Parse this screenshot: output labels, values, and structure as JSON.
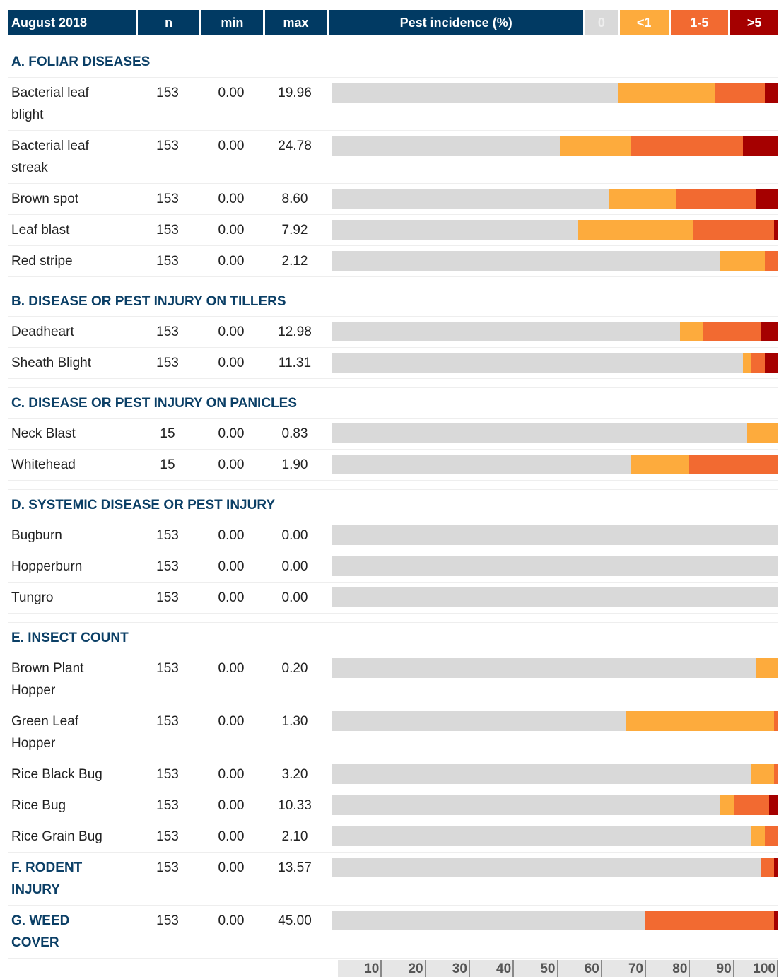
{
  "header": {
    "title": "August 2018",
    "n": "n",
    "min": "min",
    "max": "max",
    "incidence": "Pest incidence (%)",
    "legend": [
      {
        "label": "0",
        "color": "#d9d9d9"
      },
      {
        "label": "<1",
        "color": "#fdab3d"
      },
      {
        "label": "1-5",
        "color": "#f26a31"
      },
      {
        "label": ">5",
        "color": "#a50000"
      }
    ]
  },
  "sections": [
    {
      "title": "A. FOLIAR DISEASES",
      "rows": [
        {
          "name": "Bacterial leaf blight",
          "n": 153,
          "min": "0.00",
          "max": "19.96",
          "segments": [
            64,
            21.9,
            11.1,
            3
          ]
        },
        {
          "name": "Bacterial leaf streak",
          "n": 153,
          "min": "0.00",
          "max": "24.78",
          "segments": [
            51,
            16,
            25.1,
            7.9
          ]
        },
        {
          "name": "Brown spot",
          "n": 153,
          "min": "0.00",
          "max": "8.60",
          "segments": [
            62,
            15,
            17.9,
            5.1
          ]
        },
        {
          "name": "Leaf blast",
          "n": 153,
          "min": "0.00",
          "max": "7.92",
          "segments": [
            55,
            26,
            18,
            1
          ]
        },
        {
          "name": "Red stripe",
          "n": 153,
          "min": "0.00",
          "max": "2.12",
          "segments": [
            87,
            10,
            3,
            0
          ]
        }
      ]
    },
    {
      "title": "B. DISEASE OR PEST INJURY ON TILLERS",
      "rows": [
        {
          "name": "Deadheart",
          "n": 153,
          "min": "0.00",
          "max": "12.98",
          "segments": [
            78,
            5,
            13,
            4
          ]
        },
        {
          "name": "Sheath Blight",
          "n": 153,
          "min": "0.00",
          "max": "11.31",
          "segments": [
            92,
            2,
            3,
            3
          ]
        }
      ]
    },
    {
      "title": "C. DISEASE OR PEST INJURY ON PANICLES",
      "rows": [
        {
          "name": "Neck Blast",
          "n": 15,
          "min": "0.00",
          "max": "0.83",
          "segments": [
            93,
            7,
            0,
            0
          ]
        },
        {
          "name": "Whitehead",
          "n": 15,
          "min": "0.00",
          "max": "1.90",
          "segments": [
            67,
            13,
            20,
            0
          ]
        }
      ]
    },
    {
      "title": "D. SYSTEMIC DISEASE OR PEST INJURY",
      "rows": [
        {
          "name": "Bugburn",
          "n": 153,
          "min": "0.00",
          "max": "0.00",
          "segments": [
            100,
            0,
            0,
            0
          ]
        },
        {
          "name": "Hopperburn",
          "n": 153,
          "min": "0.00",
          "max": "0.00",
          "segments": [
            100,
            0,
            0,
            0
          ]
        },
        {
          "name": "Tungro",
          "n": 153,
          "min": "0.00",
          "max": "0.00",
          "segments": [
            100,
            0,
            0,
            0
          ]
        }
      ]
    },
    {
      "title": "E. INSECT COUNT",
      "rows": [
        {
          "name": "Brown Plant Hopper",
          "n": 153,
          "min": "0.00",
          "max": "0.20",
          "segments": [
            95,
            5,
            0,
            0
          ]
        },
        {
          "name": "Green Leaf Hopper",
          "n": 153,
          "min": "0.00",
          "max": "1.30",
          "segments": [
            66,
            33,
            1,
            0
          ]
        },
        {
          "name": "Rice Black Bug",
          "n": 153,
          "min": "0.00",
          "max": "3.20",
          "segments": [
            94,
            5,
            1,
            0
          ]
        },
        {
          "name": "Rice Bug",
          "n": 153,
          "min": "0.00",
          "max": "10.33",
          "segments": [
            87,
            3,
            8,
            2
          ]
        },
        {
          "name": "Rice Grain Bug",
          "n": 153,
          "min": "0.00",
          "max": "2.10",
          "segments": [
            94,
            3,
            3,
            0
          ]
        }
      ]
    },
    {
      "title": "F. RODENT INJURY",
      "n": 153,
      "min": "0.00",
      "max": "13.57",
      "segments": [
        96,
        0,
        3,
        1
      ]
    },
    {
      "title": "G. WEED COVER",
      "n": 153,
      "min": "0.00",
      "max": "45.00",
      "segments": [
        70,
        0,
        29,
        1
      ]
    }
  ],
  "axis": {
    "xlim": [
      0,
      100
    ],
    "xticks": [
      10,
      20,
      30,
      40,
      50,
      60,
      70,
      80,
      90,
      100
    ]
  }
}
